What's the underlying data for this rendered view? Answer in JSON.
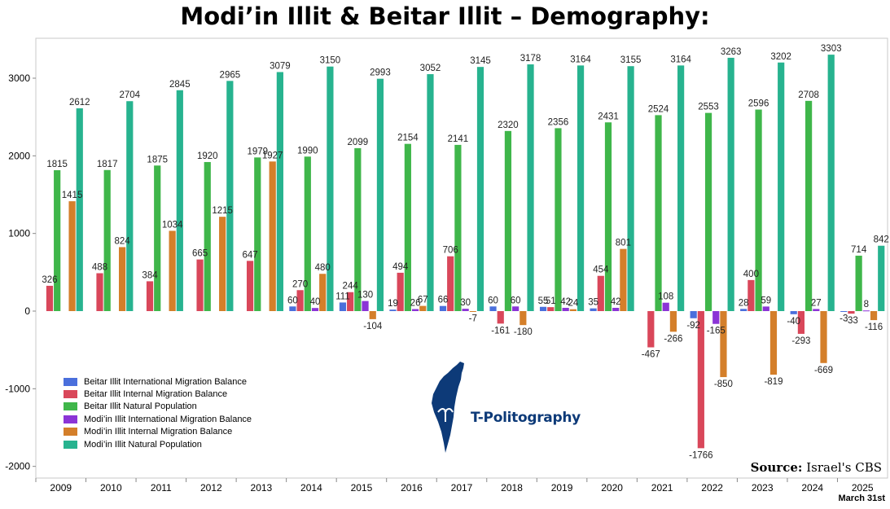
{
  "title": "Modi’in Illit & Beitar Illit – Demography:",
  "source_label": "Source:",
  "source_value": "Israel's CBS",
  "date_note": "March 31st",
  "brand": "T-Politography",
  "chart_data": {
    "type": "bar",
    "categories": [
      "2009",
      "2010",
      "2011",
      "2012",
      "2013",
      "2014",
      "2015",
      "2016",
      "2017",
      "2018",
      "2019",
      "2020",
      "2021",
      "2022",
      "2023",
      "2024",
      "2025"
    ],
    "ylim": [
      -2100,
      3400
    ],
    "yticks": [
      -2000,
      -1000,
      0,
      1000,
      2000,
      3000
    ],
    "grid": false,
    "legend_position": "bottom-left",
    "series": [
      {
        "name": "Beitar Illit International Migration Balance",
        "color": "#4a6fdc",
        "values": [
          null,
          null,
          null,
          null,
          null,
          60,
          111,
          19,
          66,
          60,
          55,
          35,
          null,
          -92,
          28,
          -40,
          -3
        ],
        "labels": [
          "",
          "",
          "",
          "",
          "",
          "60",
          "111",
          "19",
          "66",
          "60",
          "55",
          "35",
          "",
          "-92",
          "28",
          "-40",
          "-3"
        ]
      },
      {
        "name": "Beitar Illit Internal Migration Balance",
        "color": "#d9475a",
        "values": [
          326,
          488,
          384,
          665,
          647,
          270,
          244,
          494,
          706,
          -161,
          51,
          454,
          -467,
          -1766,
          400,
          -293,
          -33
        ],
        "labels": [
          "326",
          "488",
          "384",
          "665",
          "647",
          "270",
          "244",
          "494",
          "706",
          "-161",
          "51",
          "454",
          "-467",
          "-1766",
          "400",
          "-293",
          "-33"
        ]
      },
      {
        "name": "Beitar Illit Natural Population",
        "color": "#3fb64a",
        "values": [
          1815,
          1817,
          1875,
          1920,
          1979,
          1990,
          2099,
          2154,
          2141,
          2320,
          2356,
          2431,
          2524,
          2553,
          2596,
          2708,
          714
        ],
        "labels": [
          "1815",
          "1817",
          "1875",
          "1920",
          "1979",
          "1990",
          "2099",
          "2154",
          "2141",
          "2320",
          "2356",
          "2431",
          "2524",
          "2553",
          "2596",
          "2708",
          "714"
        ]
      },
      {
        "name": "Modi’in Illit International Migration Balance",
        "color": "#8b34d6",
        "values": [
          null,
          null,
          null,
          null,
          null,
          40,
          130,
          26,
          30,
          60,
          42,
          42,
          108,
          -165,
          59,
          27,
          8
        ],
        "labels": [
          "",
          "",
          "",
          "",
          "",
          "40",
          "130",
          "26",
          "30",
          "60",
          "42",
          "42",
          "108",
          "-165",
          "59",
          "27",
          "8"
        ]
      },
      {
        "name": "Modi’in Illit Internal Migration Balance",
        "color": "#d47f2a",
        "values": [
          1415,
          824,
          1034,
          1215,
          1927,
          480,
          -104,
          67,
          -7,
          -180,
          24,
          801,
          -266,
          -850,
          -819,
          -669,
          -116
        ],
        "labels": [
          "1415",
          "824",
          "1034",
          "1215",
          "1927",
          "480",
          "-104",
          "67",
          "-7",
          "-180",
          "24",
          "801",
          "-266",
          "-850",
          "-819",
          "-669",
          "-116"
        ]
      },
      {
        "name": "Modi’in Illit Natural Population",
        "color": "#27b38f",
        "values": [
          2612,
          2704,
          2845,
          2965,
          3079,
          3150,
          2993,
          3052,
          3145,
          3178,
          3164,
          3155,
          3164,
          3263,
          3202,
          3303,
          842
        ],
        "labels": [
          "2612",
          "2704",
          "2845",
          "2965",
          "3079",
          "3150",
          "2993",
          "3052",
          "3145",
          "3178",
          "3164",
          "3155",
          "3164",
          "3263",
          "3202",
          "3303",
          "842"
        ]
      }
    ]
  }
}
